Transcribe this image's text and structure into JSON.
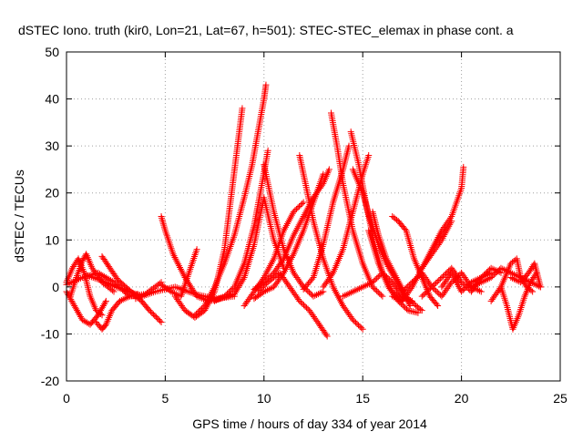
{
  "chart_data": {
    "type": "scatter",
    "title": "dSTEC Iono. truth (kir0, Lon=21, Lat=67, h=501): STEC-STEC_elemax in phase cont. a",
    "xlabel": "GPS time / hours of day 334 of year 2014",
    "ylabel": "dSTEC  / TECUs",
    "xlim": [
      0,
      25
    ],
    "ylim": [
      -20,
      50
    ],
    "xticks": [
      "0",
      "5",
      "10",
      "15",
      "20",
      "25"
    ],
    "yticks": [
      "-20",
      "-10",
      "0",
      "10",
      "20",
      "30",
      "40",
      "50"
    ],
    "grid": true,
    "marker": "plus",
    "color": "#ff0000",
    "series": [
      {
        "x": [
          0.0,
          0.3,
          0.6,
          0.9,
          1.2,
          1.5,
          1.8
        ],
        "y": [
          1.0,
          4.0,
          6.0,
          3.0,
          -2.0,
          -5.0,
          -6.0
        ]
      },
      {
        "x": [
          0.2,
          0.5,
          0.8,
          1.0,
          1.3,
          1.8,
          2.4
        ],
        "y": [
          -2.0,
          2.0,
          5.5,
          7.0,
          4.0,
          1.0,
          -1.0
        ]
      },
      {
        "x": [
          0.0,
          0.4,
          0.8,
          1.2,
          1.6,
          2.0
        ],
        "y": [
          -1.0,
          -4.0,
          -7.0,
          -8.0,
          -6.0,
          -3.0
        ]
      },
      {
        "x": [
          1.5,
          1.8,
          2.0,
          2.3,
          2.7,
          3.2,
          3.6
        ],
        "y": [
          -7.5,
          -9.0,
          -8.0,
          -5.0,
          -3.0,
          -2.0,
          -1.5
        ]
      },
      {
        "x": [
          1.0,
          1.7,
          2.5,
          3.2,
          3.8
        ],
        "y": [
          2.5,
          1.5,
          0.0,
          -1.0,
          -2.0
        ]
      },
      {
        "x": [
          1.8,
          2.2,
          2.6,
          3.0,
          3.4,
          3.8,
          4.2,
          4.8
        ],
        "y": [
          6.5,
          4.0,
          1.5,
          0.0,
          -1.5,
          -3.0,
          -5.0,
          -7.5
        ]
      },
      {
        "x": [
          0.0,
          0.8,
          1.6,
          2.4,
          3.2,
          4.0,
          4.8
        ],
        "y": [
          0.5,
          2.0,
          3.0,
          1.0,
          -2.0,
          -1.5,
          1.0
        ]
      },
      {
        "x": [
          4.8,
          5.0,
          5.4,
          6.0,
          6.6,
          7.2,
          7.8,
          8.5
        ],
        "y": [
          15.0,
          12.0,
          7.0,
          2.0,
          -2.0,
          -3.0,
          -2.5,
          -1.5
        ]
      },
      {
        "x": [
          4.8,
          5.3,
          5.8,
          6.2,
          6.6
        ],
        "y": [
          0.5,
          -1.0,
          -2.0,
          3.0,
          8.0
        ]
      },
      {
        "x": [
          3.5,
          4.5,
          5.5,
          6.5,
          7.5,
          8.5
        ],
        "y": [
          -2.5,
          -1.0,
          0.0,
          -1.5,
          -2.5,
          -2.0
        ]
      },
      {
        "x": [
          5.5,
          6.0,
          6.5,
          7.0,
          7.5,
          8.0,
          8.3,
          8.6,
          8.9
        ],
        "y": [
          -2.0,
          -5.0,
          -6.5,
          -5.0,
          -1.0,
          8.0,
          18.0,
          28.0,
          38.0
        ]
      },
      {
        "x": [
          6.5,
          7.0,
          7.5,
          8.0,
          8.5,
          9.0,
          9.4,
          9.7,
          10.0,
          10.1
        ],
        "y": [
          -6.0,
          -4.0,
          0.0,
          5.0,
          11.0,
          19.0,
          26.0,
          33.0,
          40.0,
          43.0
        ]
      },
      {
        "x": [
          7.5,
          8.0,
          8.5,
          9.0,
          9.5,
          9.9,
          10.2
        ],
        "y": [
          -3.0,
          -2.0,
          0.0,
          5.0,
          13.0,
          22.0,
          29.0
        ]
      },
      {
        "x": [
          8.5,
          9.0,
          9.5,
          10.0,
          10.5,
          11.0
        ],
        "y": [
          -1.5,
          2.0,
          9.0,
          19.0,
          10.0,
          4.0
        ]
      },
      {
        "x": [
          9.5,
          10.0,
          10.5,
          11.0,
          11.5,
          12.0,
          12.5,
          13.0
        ],
        "y": [
          -2.5,
          -1.0,
          0.0,
          3.0,
          7.0,
          12.0,
          18.0,
          24.0
        ]
      },
      {
        "x": [
          9.5,
          10.0,
          10.5,
          11.0,
          11.5,
          12.0,
          12.5,
          13.0,
          13.3
        ],
        "y": [
          -0.5,
          1.0,
          3.0,
          6.0,
          11.0,
          15.0,
          19.0,
          22.0,
          25.0
        ]
      },
      {
        "x": [
          9.0,
          10.0,
          10.5,
          11.0,
          11.5,
          12.0
        ],
        "y": [
          -4.0,
          2.0,
          6.0,
          12.0,
          16.0,
          18.0
        ]
      },
      {
        "x": [
          9.7,
          10.2,
          10.8,
          11.3,
          11.8,
          12.3,
          12.8,
          13.2
        ],
        "y": [
          -1.0,
          1.0,
          3.0,
          0.0,
          -3.0,
          -5.0,
          -8.0,
          -10.5
        ]
      },
      {
        "x": [
          10.0,
          10.5,
          11.0,
          11.5,
          12.0,
          12.5,
          13.0
        ],
        "y": [
          26.0,
          16.0,
          8.0,
          3.0,
          0.0,
          -2.0,
          -1.0
        ]
      },
      {
        "x": [
          11.8,
          12.1,
          12.5,
          13.0,
          13.5,
          14.0,
          14.5,
          15.0
        ],
        "y": [
          28.0,
          22.0,
          14.0,
          6.0,
          0.0,
          -4.0,
          -7.0,
          -9.0
        ]
      },
      {
        "x": [
          12.0,
          12.5,
          13.0,
          13.5,
          14.0,
          14.3
        ],
        "y": [
          -0.5,
          2.0,
          9.0,
          18.0,
          25.0,
          30.0
        ]
      },
      {
        "x": [
          13.4,
          13.7,
          14.0,
          14.5,
          15.0,
          15.5,
          16.0
        ],
        "y": [
          37.0,
          30.0,
          22.0,
          12.0,
          5.0,
          0.0,
          -2.0
        ]
      },
      {
        "x": [
          13.0,
          13.5,
          14.0,
          14.5,
          15.0,
          15.3
        ],
        "y": [
          0.0,
          3.0,
          8.0,
          16.0,
          24.0,
          28.0
        ]
      },
      {
        "x": [
          14.4,
          14.8,
          15.2,
          15.6,
          16.0,
          16.5,
          17.0
        ],
        "y": [
          33.0,
          26.0,
          17.0,
          9.0,
          3.0,
          -1.0,
          -2.5
        ]
      },
      {
        "x": [
          14.5,
          15.0,
          15.4,
          15.8,
          16.2,
          16.6,
          17.0,
          17.4
        ],
        "y": [
          25.0,
          20.0,
          14.0,
          9.0,
          5.0,
          2.0,
          -1.0,
          -4.0
        ]
      },
      {
        "x": [
          15.3,
          15.8,
          16.3,
          16.8,
          17.3,
          17.8
        ],
        "y": [
          12.0,
          5.0,
          0.0,
          -3.0,
          -5.0,
          -5.5
        ]
      },
      {
        "x": [
          14.0,
          14.5,
          15.0,
          15.5,
          16.0,
          16.5,
          17.0,
          17.5
        ],
        "y": [
          -2.0,
          -1.0,
          0.0,
          1.0,
          3.0,
          1.0,
          -2.0,
          -3.0
        ]
      },
      {
        "x": [
          15.5,
          15.8,
          16.2,
          16.7,
          17.2,
          17.7,
          18.0
        ],
        "y": [
          16.0,
          11.0,
          6.0,
          2.0,
          -2.0,
          -4.0,
          -5.0
        ]
      },
      {
        "x": [
          16.5,
          16.8,
          17.2,
          17.6,
          18.0,
          18.4,
          18.8
        ],
        "y": [
          15.0,
          14.0,
          12.0,
          6.0,
          2.0,
          -2.0,
          -4.0
        ]
      },
      {
        "x": [
          16.5,
          17.0,
          17.5,
          18.0,
          18.5,
          19.0,
          19.5
        ],
        "y": [
          -2.0,
          -3.0,
          0.0,
          4.0,
          7.0,
          10.0,
          14.0
        ]
      },
      {
        "x": [
          18.0,
          18.5,
          19.0,
          19.5,
          20.0,
          20.1
        ],
        "y": [
          4.0,
          8.0,
          12.0,
          15.0,
          21.0,
          25.5
        ]
      },
      {
        "x": [
          17.0,
          17.5,
          18.0,
          18.5,
          19.0,
          19.5,
          20.0,
          20.5,
          21.0
        ],
        "y": [
          -1.0,
          1.0,
          3.0,
          0.0,
          -2.0,
          1.0,
          3.0,
          0.0,
          -1.0
        ]
      },
      {
        "x": [
          18.0,
          18.5,
          19.0,
          19.5,
          20.0,
          20.5,
          21.0,
          21.5
        ],
        "y": [
          -2.0,
          0.0,
          2.0,
          4.0,
          1.0,
          -1.0,
          2.0,
          3.0
        ]
      },
      {
        "x": [
          19.0,
          19.5,
          20.0,
          20.5,
          21.0,
          21.5,
          22.0
        ],
        "y": [
          0.0,
          3.0,
          -1.0,
          1.0,
          2.0,
          4.0,
          3.0
        ]
      },
      {
        "x": [
          20.5,
          21.0,
          21.5,
          22.0,
          22.5,
          23.0,
          23.5,
          24.0
        ],
        "y": [
          0.0,
          1.0,
          2.0,
          4.0,
          3.0,
          2.0,
          1.0,
          0.0
        ]
      },
      {
        "x": [
          21.5,
          22.0,
          22.5,
          22.8,
          23.0,
          23.3,
          23.6
        ],
        "y": [
          -3.0,
          0.0,
          5.0,
          6.0,
          2.0,
          0.0,
          -1.0
        ]
      },
      {
        "x": [
          22.0,
          22.3,
          22.6,
          22.9,
          23.2,
          23.5,
          23.8
        ],
        "y": [
          0.0,
          -4.0,
          -9.0,
          -6.0,
          -2.0,
          1.0,
          3.0
        ]
      },
      {
        "x": [
          22.5,
          23.0,
          23.4,
          23.7,
          24.0
        ],
        "y": [
          2.0,
          1.0,
          3.0,
          5.0,
          0.0
        ]
      }
    ]
  }
}
